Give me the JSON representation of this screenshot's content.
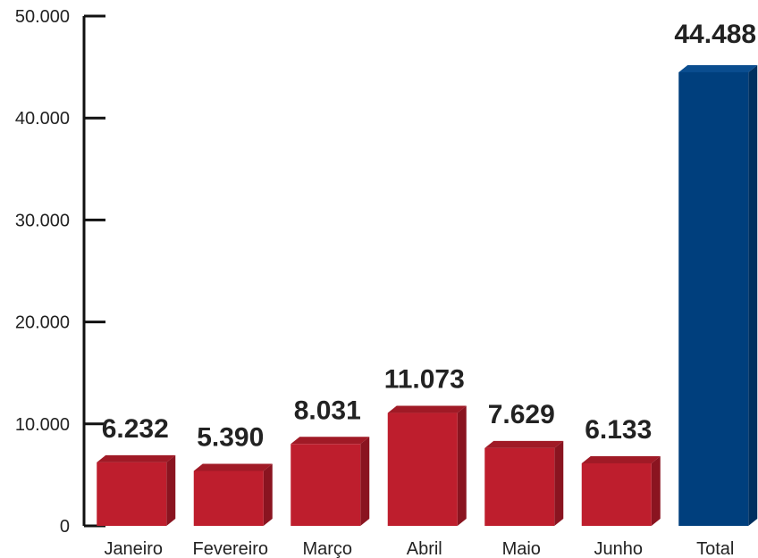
{
  "chart_data": {
    "type": "bar",
    "title": "",
    "xlabel": "",
    "ylabel": "",
    "ylim": [
      0,
      50000
    ],
    "yticks": [
      {
        "value": 0,
        "label": "0"
      },
      {
        "value": 10000,
        "label": "10.000"
      },
      {
        "value": 20000,
        "label": "20.000"
      },
      {
        "value": 30000,
        "label": "30.000"
      },
      {
        "value": 40000,
        "label": "40.000"
      },
      {
        "value": 50000,
        "label": "50.000"
      }
    ],
    "grid": false,
    "style": "3d-bars",
    "categories": [
      "Janeiro",
      "Fevereiro",
      "Março",
      "Abril",
      "Maio",
      "Junho",
      "Total"
    ],
    "values": [
      6232,
      5390,
      8031,
      11073,
      7629,
      6133,
      44488
    ],
    "data_labels": [
      "6.232",
      "5.390",
      "8.031",
      "11.073",
      "7.629",
      "6.133",
      "44.488"
    ],
    "colors": {
      "bar": "#be1e2d",
      "bar_top": "#a01a26",
      "bar_side": "#8a1420",
      "total": "#003f7d",
      "total_top": "#0a4d8f",
      "total_side": "#00305f",
      "axis": "#111111"
    }
  }
}
